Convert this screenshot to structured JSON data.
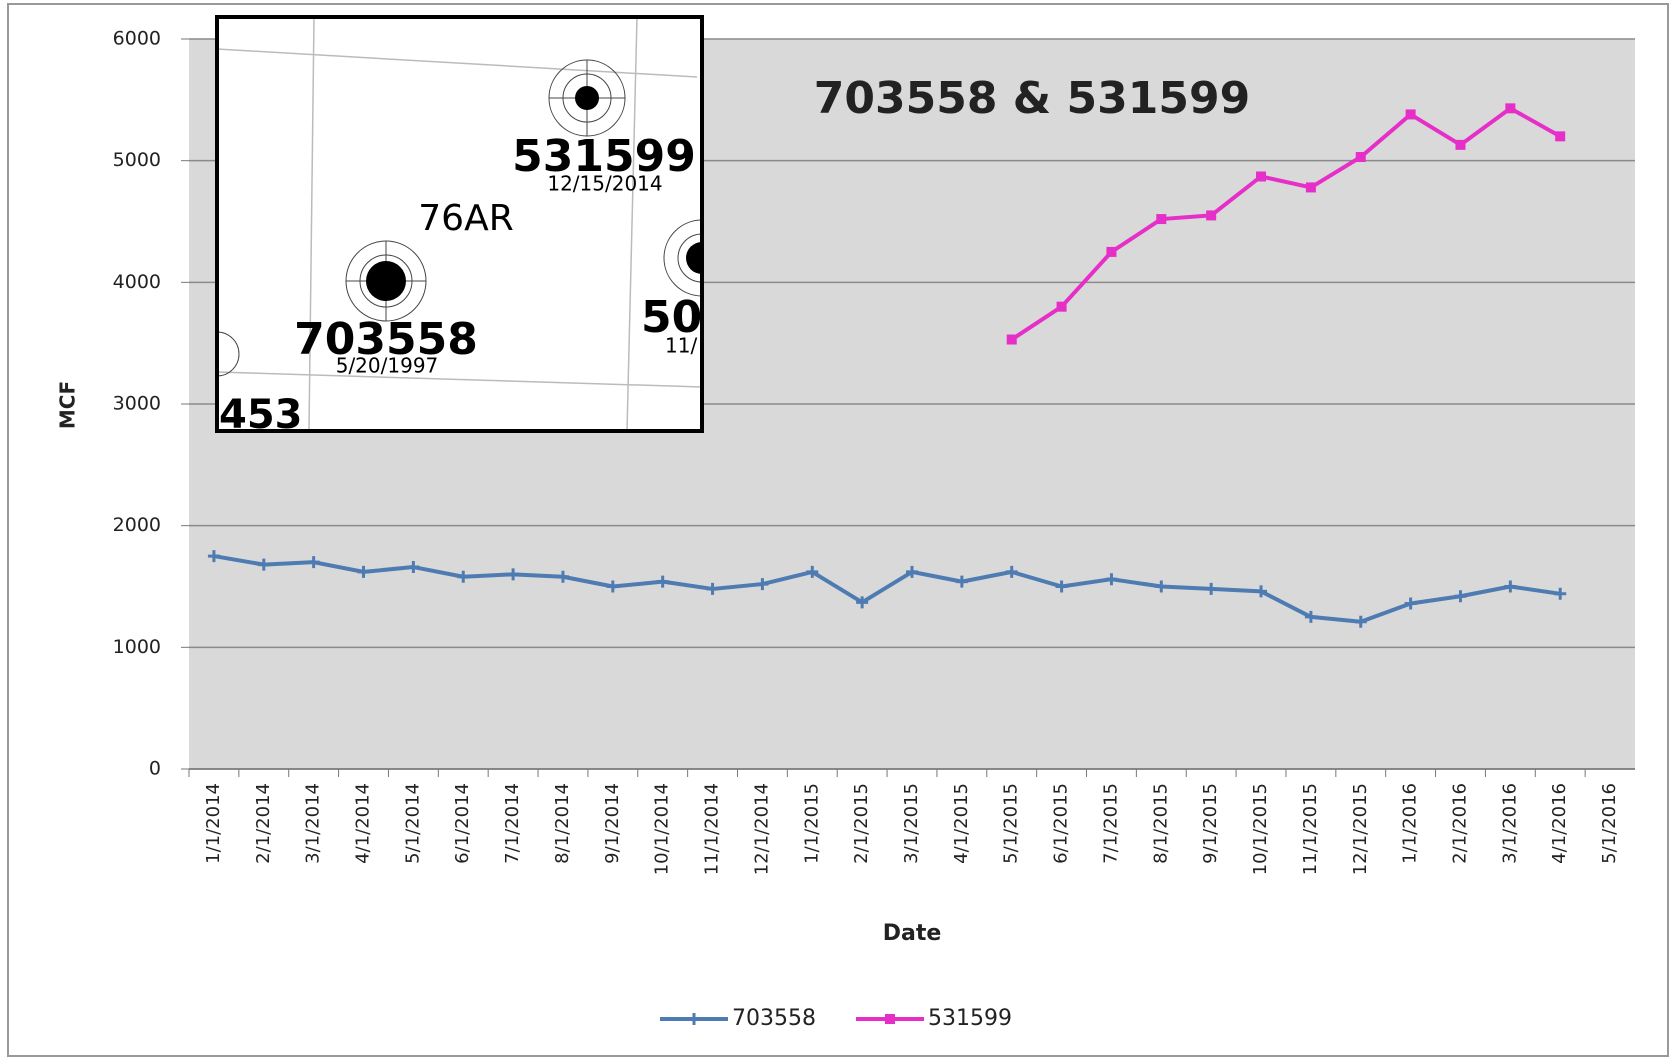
{
  "chart_data": {
    "type": "line",
    "title": "703558 & 531599",
    "y_label": "MCF",
    "x_label": "Date",
    "categories": [
      "1/1/2014",
      "2/1/2014",
      "3/1/2014",
      "4/1/2014",
      "5/1/2014",
      "6/1/2014",
      "7/1/2014",
      "8/1/2014",
      "9/1/2014",
      "10/1/2014",
      "11/1/2014",
      "12/1/2014",
      "1/1/2015",
      "2/1/2015",
      "3/1/2015",
      "4/1/2015",
      "5/1/2015",
      "6/1/2015",
      "7/1/2015",
      "8/1/2015",
      "9/1/2015",
      "10/1/2015",
      "11/1/2015",
      "12/1/2015",
      "1/1/2016",
      "2/1/2016",
      "3/1/2016",
      "4/1/2016",
      "5/1/2016"
    ],
    "series": [
      {
        "name": "703558",
        "color": "#4f7bb3",
        "values": [
          1750,
          1680,
          1700,
          1620,
          1660,
          1580,
          1600,
          1580,
          1500,
          1540,
          1480,
          1520,
          1620,
          1370,
          1620,
          1540,
          1620,
          1500,
          1560,
          1500,
          1480,
          1460,
          1250,
          1210,
          1360,
          1420,
          1500,
          1440,
          null
        ]
      },
      {
        "name": "531599",
        "color": "#e62fc8",
        "values": [
          null,
          null,
          null,
          null,
          null,
          null,
          null,
          null,
          null,
          null,
          null,
          null,
          null,
          null,
          null,
          null,
          3530,
          3800,
          4250,
          4520,
          4550,
          4870,
          4780,
          5030,
          5380,
          5130,
          5430,
          5200,
          null
        ]
      }
    ],
    "ylim": [
      0,
      6000
    ],
    "yticks": [
      0,
      1000,
      2000,
      3000,
      4000,
      5000,
      6000
    ],
    "grid": true,
    "legend": "bottom"
  },
  "inset": {
    "labels": [
      "531599",
      "12/15/2014",
      "76AR",
      "703558",
      "5/20/1997",
      "50",
      "11/",
      "453"
    ]
  }
}
